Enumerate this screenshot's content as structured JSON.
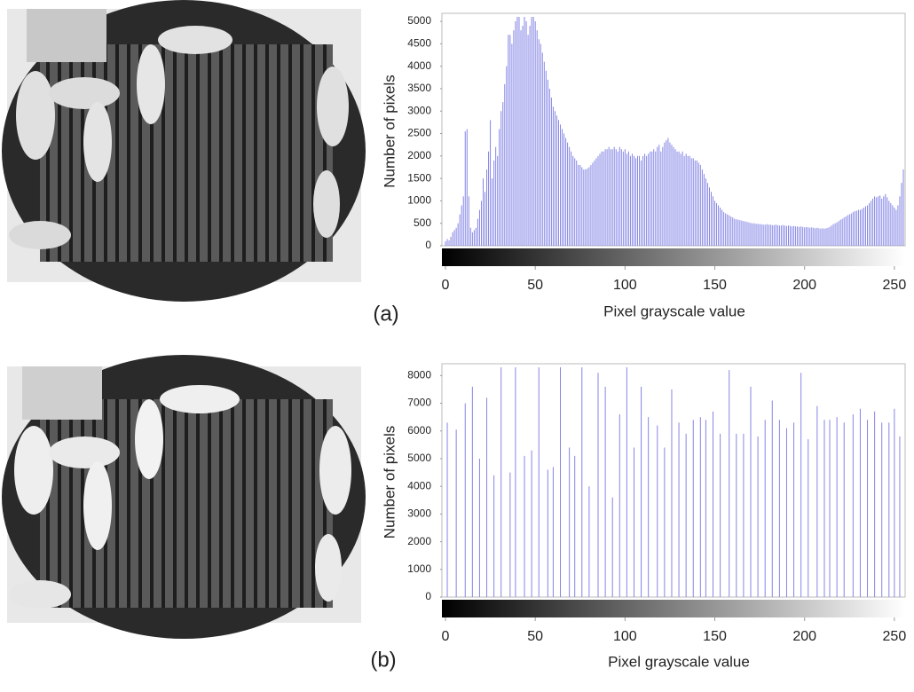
{
  "chart_data": [
    {
      "type": "bar",
      "label": "(a)",
      "ylabel": "Number of pixels",
      "xlabel": "Pixel grayscale value",
      "color": "#8585e6",
      "xlim": [
        0,
        255
      ],
      "ylim": [
        0,
        5100
      ],
      "xticks": [
        0,
        50,
        100,
        150,
        200,
        250
      ],
      "yticks": [
        0,
        500,
        1000,
        1500,
        2000,
        2500,
        3000,
        3500,
        4000,
        4500,
        5000
      ],
      "values": [
        100,
        150,
        120,
        200,
        300,
        350,
        400,
        500,
        700,
        900,
        1100,
        2550,
        2600,
        1100,
        400,
        300,
        350,
        400,
        600,
        800,
        1000,
        1500,
        1200,
        1700,
        2100,
        2800,
        1500,
        1900,
        2200,
        2000,
        2600,
        3000,
        3200,
        3600,
        4000,
        4700,
        4700,
        4500,
        4800,
        5000,
        5100,
        5100,
        4800,
        4900,
        5100,
        5000,
        4700,
        4900,
        5100,
        5100,
        5000,
        4800,
        4600,
        4500,
        4300,
        4100,
        3900,
        3700,
        3500,
        3300,
        3100,
        3000,
        2900,
        2800,
        2700,
        2600,
        2500,
        2400,
        2300,
        2200,
        2100,
        2000,
        1950,
        1900,
        1800,
        1800,
        1750,
        1700,
        1700,
        1720,
        1750,
        1800,
        1850,
        1900,
        1950,
        2000,
        2050,
        2100,
        2100,
        2150,
        2150,
        2200,
        2150,
        2150,
        2200,
        2150,
        2100,
        2200,
        2150,
        2100,
        2150,
        2050,
        2100,
        2000,
        2050,
        2000,
        1950,
        2000,
        2000,
        1900,
        2000,
        2050,
        2000,
        2050,
        2100,
        2100,
        2150,
        2100,
        2200,
        2250,
        2100,
        2200,
        2300,
        2350,
        2400,
        2300,
        2250,
        2200,
        2150,
        2100,
        2100,
        2050,
        2100,
        2000,
        2050,
        2000,
        2000,
        1950,
        1950,
        1900,
        1900,
        1850,
        1800,
        1700,
        1600,
        1500,
        1400,
        1300,
        1200,
        1100,
        1000,
        950,
        900,
        850,
        800,
        750,
        720,
        700,
        680,
        650,
        630,
        600,
        590,
        580,
        570,
        560,
        550,
        540,
        530,
        520,
        510,
        500,
        500,
        490,
        490,
        480,
        480,
        470,
        470,
        480,
        470,
        470,
        460,
        460,
        470,
        460,
        450,
        450,
        460,
        450,
        440,
        450,
        440,
        430,
        440,
        430,
        430,
        420,
        430,
        420,
        410,
        420,
        410,
        400,
        410,
        400,
        390,
        400,
        390,
        380,
        390,
        380,
        390,
        400,
        420,
        450,
        480,
        500,
        520,
        550,
        580,
        600,
        630,
        650,
        680,
        700,
        720,
        750,
        770,
        780,
        800,
        800,
        820,
        850,
        880,
        900,
        950,
        1000,
        1050,
        1100,
        1080,
        1100,
        1120,
        1050,
        1100,
        1150,
        1080,
        1000,
        950,
        900,
        850,
        800,
        900,
        1100,
        1400,
        1700
      ]
    },
    {
      "type": "bar",
      "label": "(b)",
      "ylabel": "Number of pixels",
      "xlabel": "Pixel grayscale value",
      "color": "#8585e6",
      "xlim": [
        0,
        255
      ],
      "ylim": [
        0,
        8300
      ],
      "xticks": [
        0,
        50,
        100,
        150,
        200,
        250
      ],
      "yticks": [
        0,
        1000,
        2000,
        3000,
        4000,
        5000,
        6000,
        7000,
        8000
      ],
      "x": [
        1,
        6,
        11,
        15,
        19,
        23,
        27,
        31,
        36,
        39,
        44,
        48,
        52,
        57,
        60,
        64,
        69,
        72,
        76,
        80,
        85,
        89,
        93,
        97,
        101,
        105,
        109,
        113,
        118,
        122,
        126,
        130,
        134,
        138,
        142,
        145,
        149,
        153,
        158,
        162,
        166,
        170,
        174,
        178,
        182,
        186,
        190,
        194,
        198,
        202,
        207,
        211,
        214,
        218,
        222,
        227,
        231,
        235,
        239,
        243,
        247,
        250,
        253
      ],
      "values": [
        6300,
        6050,
        7000,
        7600,
        5000,
        7200,
        4400,
        8300,
        4500,
        8300,
        5100,
        5300,
        8300,
        4600,
        4700,
        8300,
        5400,
        5100,
        8300,
        4000,
        8100,
        7600,
        3600,
        6600,
        8300,
        5400,
        7600,
        6500,
        6200,
        5400,
        7500,
        6300,
        5900,
        6400,
        6500,
        6400,
        6700,
        5900,
        8200,
        5900,
        5900,
        7600,
        5800,
        6400,
        7100,
        6400,
        6100,
        6300,
        8100,
        5700,
        6900,
        6400,
        6400,
        6500,
        6300,
        6600,
        6800,
        6400,
        6700,
        6300,
        6300,
        6800,
        5800
      ]
    }
  ]
}
